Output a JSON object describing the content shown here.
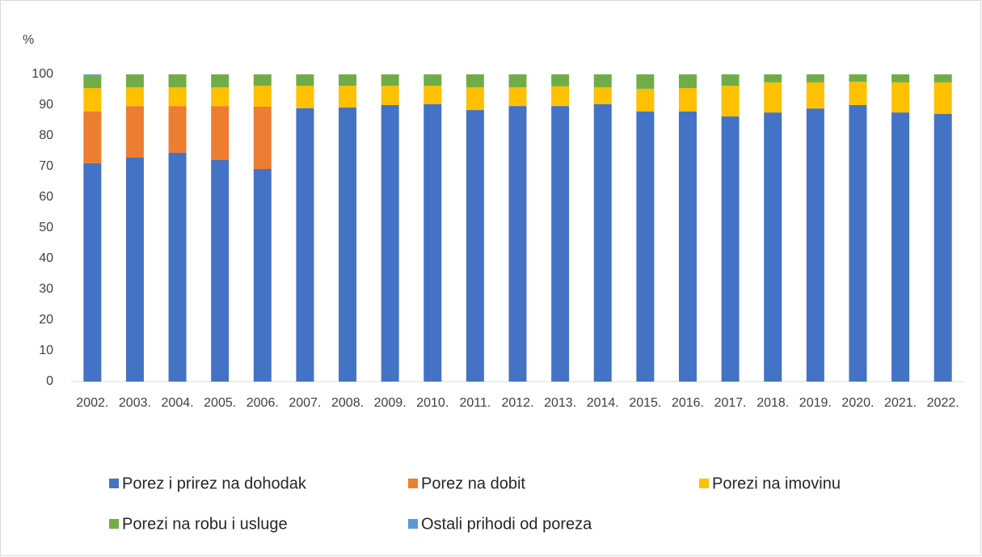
{
  "chart_data": {
    "type": "bar",
    "stacked": true,
    "y_label": "%",
    "categories": [
      "2002.",
      "2003.",
      "2004.",
      "2005.",
      "2006.",
      "2007.",
      "2008.",
      "2009.",
      "2010.",
      "2011.",
      "2012.",
      "2013.",
      "2014.",
      "2015.",
      "2016.",
      "2017.",
      "2018.",
      "2019.",
      "2020.",
      "2021.",
      "2022."
    ],
    "series": [
      {
        "name": "Porez i prirez na dohodak",
        "color": "#4472c4",
        "values": [
          71.1,
          72.9,
          74.5,
          72.1,
          69.2,
          89.0,
          89.2,
          90.0,
          90.3,
          88.4,
          89.7,
          89.7,
          90.3,
          87.9,
          87.9,
          86.3,
          87.6,
          88.9,
          90.0,
          87.6,
          87.1
        ]
      },
      {
        "name": "Porez na dobit",
        "color": "#ed7d31",
        "values": [
          16.8,
          16.8,
          15.2,
          17.6,
          20.3,
          0,
          0,
          0,
          0,
          0,
          0,
          0,
          0,
          0,
          0,
          0,
          0,
          0,
          0,
          0,
          0
        ]
      },
      {
        "name": "Porezi na imovinu",
        "color": "#ffc000",
        "values": [
          7.6,
          6.1,
          6.1,
          6.1,
          6.8,
          7.3,
          7.1,
          6.3,
          6.0,
          7.4,
          6.1,
          6.4,
          5.5,
          7.4,
          7.6,
          10.0,
          9.8,
          8.5,
          7.6,
          9.8,
          10.3
        ]
      },
      {
        "name": "Porezi na robu i usluge",
        "color": "#70ad47",
        "values": [
          4.2,
          4.2,
          4.2,
          4.2,
          3.7,
          3.7,
          3.7,
          3.7,
          3.7,
          4.2,
          4.2,
          3.9,
          4.2,
          4.7,
          4.5,
          3.7,
          2.6,
          2.6,
          2.4,
          2.6,
          2.6
        ]
      },
      {
        "name": "Ostali prihodi od poreza",
        "color": "#5b9bd5",
        "values": [
          0.3,
          0,
          0,
          0,
          0,
          0,
          0,
          0,
          0,
          0,
          0,
          0,
          0,
          0,
          0,
          0,
          0,
          0,
          0,
          0,
          0
        ]
      }
    ],
    "ylim": [
      0,
      100
    ],
    "yticks": [
      0,
      10,
      20,
      30,
      40,
      50,
      60,
      70,
      80,
      90,
      100
    ],
    "grid": false,
    "legend": "bottom"
  }
}
